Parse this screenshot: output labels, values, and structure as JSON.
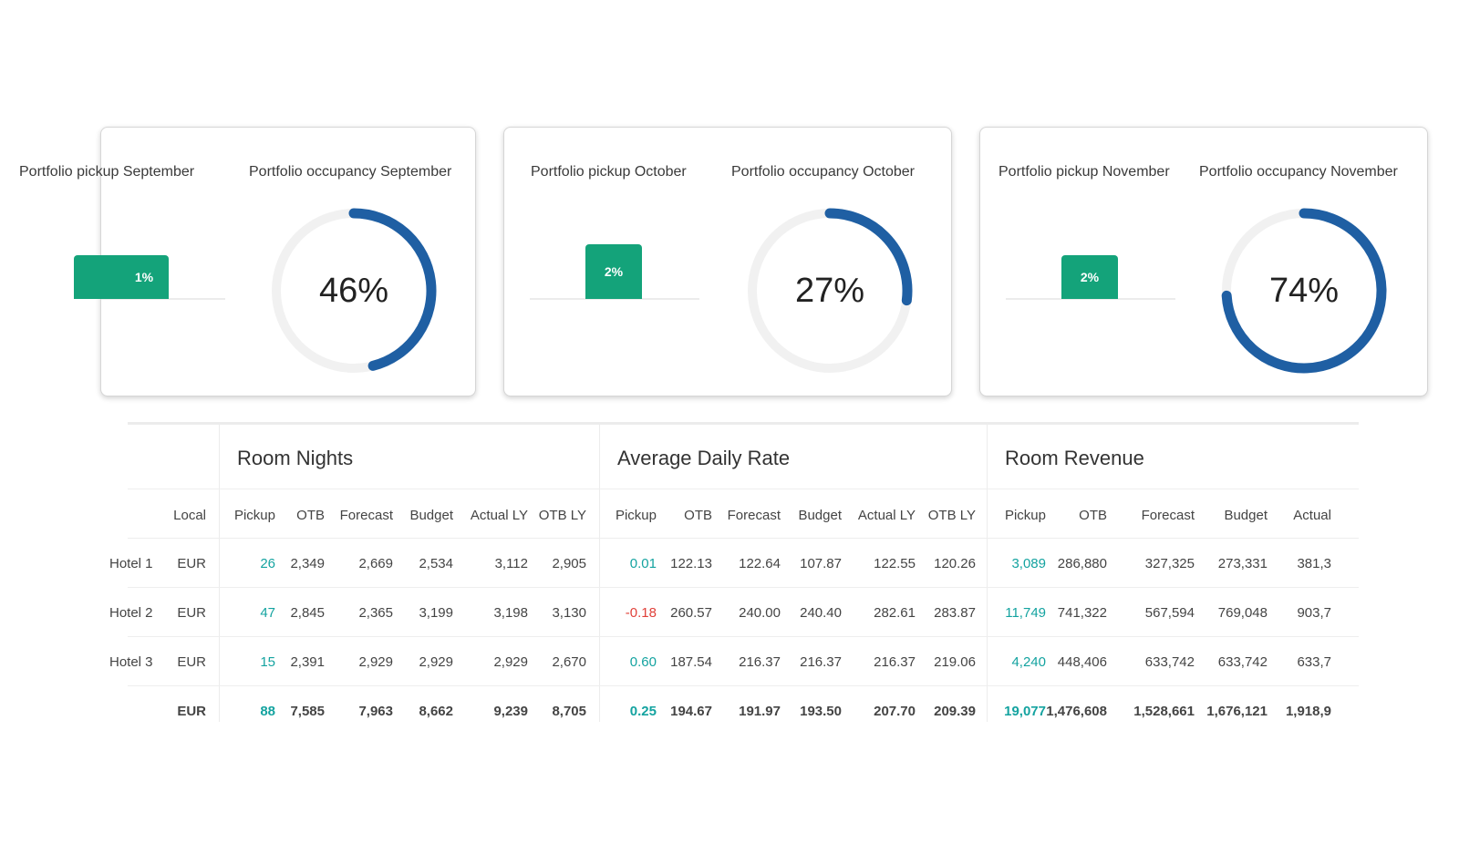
{
  "cards": [
    {
      "pickup_label": "Portfolio pickup September",
      "occupancy_label": "Portfolio occupancy September",
      "pickup_value": "1%",
      "pickup_fraction": 0.01,
      "occupancy_value": "46%",
      "occupancy_fraction": 0.46
    },
    {
      "pickup_label": "Portfolio pickup October",
      "occupancy_label": "Portfolio occupancy October",
      "pickup_value": "2%",
      "pickup_fraction": 0.02,
      "occupancy_value": "27%",
      "occupancy_fraction": 0.27
    },
    {
      "pickup_label": "Portfolio pickup November",
      "occupancy_label": "Portfolio occupancy November",
      "pickup_value": "2%",
      "pickup_fraction": 0.02,
      "occupancy_value": "74%",
      "occupancy_fraction": 0.74
    }
  ],
  "colors": {
    "accent_blue": "#1f5fa3",
    "pickup_green": "#14a37a",
    "positive_teal": "#14a3a0",
    "negative_red": "#e0413a",
    "ring_track": "#f1f1f1"
  },
  "table": {
    "groups": {
      "room_nights": "Room Nights",
      "adr": "Average Daily Rate",
      "revenue": "Room Revenue"
    },
    "header": {
      "local": "Local",
      "rn": [
        "Pickup",
        "OTB",
        "Forecast",
        "Budget",
        "Actual LY",
        "OTB LY"
      ],
      "adr": [
        "Pickup",
        "OTB",
        "Forecast",
        "Budget",
        "Actual LY",
        "OTB LY"
      ],
      "rev": [
        "Pickup",
        "OTB",
        "Forecast",
        "Budget",
        "Actual"
      ]
    },
    "rows": [
      {
        "label": "Hotel 1",
        "currency": "EUR",
        "rn": [
          "26",
          "2,349",
          "2,669",
          "2,534",
          "3,112",
          "2,905"
        ],
        "adr": [
          "0.01",
          "122.13",
          "122.64",
          "107.87",
          "122.55",
          "120.26"
        ],
        "rev": [
          "3,089",
          "286,880",
          "327,325",
          "273,331",
          "381,3"
        ]
      },
      {
        "label": "Hotel 2",
        "currency": "EUR",
        "rn": [
          "47",
          "2,845",
          "2,365",
          "3,199",
          "3,198",
          "3,130"
        ],
        "adr": [
          "-0.18",
          "260.57",
          "240.00",
          "240.40",
          "282.61",
          "283.87"
        ],
        "rev": [
          "11,749",
          "741,322",
          "567,594",
          "769,048",
          "903,7"
        ]
      },
      {
        "label": "Hotel 3",
        "currency": "EUR",
        "rn": [
          "15",
          "2,391",
          "2,929",
          "2,929",
          "2,929",
          "2,670"
        ],
        "adr": [
          "0.60",
          "187.54",
          "216.37",
          "216.37",
          "216.37",
          "219.06"
        ],
        "rev": [
          "4,240",
          "448,406",
          "633,742",
          "633,742",
          "633,7"
        ]
      },
      {
        "label": "",
        "currency": "EUR",
        "rn": [
          "88",
          "7,585",
          "7,963",
          "8,662",
          "9,239",
          "8,705"
        ],
        "adr": [
          "0.25",
          "194.67",
          "191.97",
          "193.50",
          "207.70",
          "209.39"
        ],
        "rev": [
          "19,077",
          "1,476,608",
          "1,528,661",
          "1,676,121",
          "1,918,9"
        ]
      }
    ]
  }
}
